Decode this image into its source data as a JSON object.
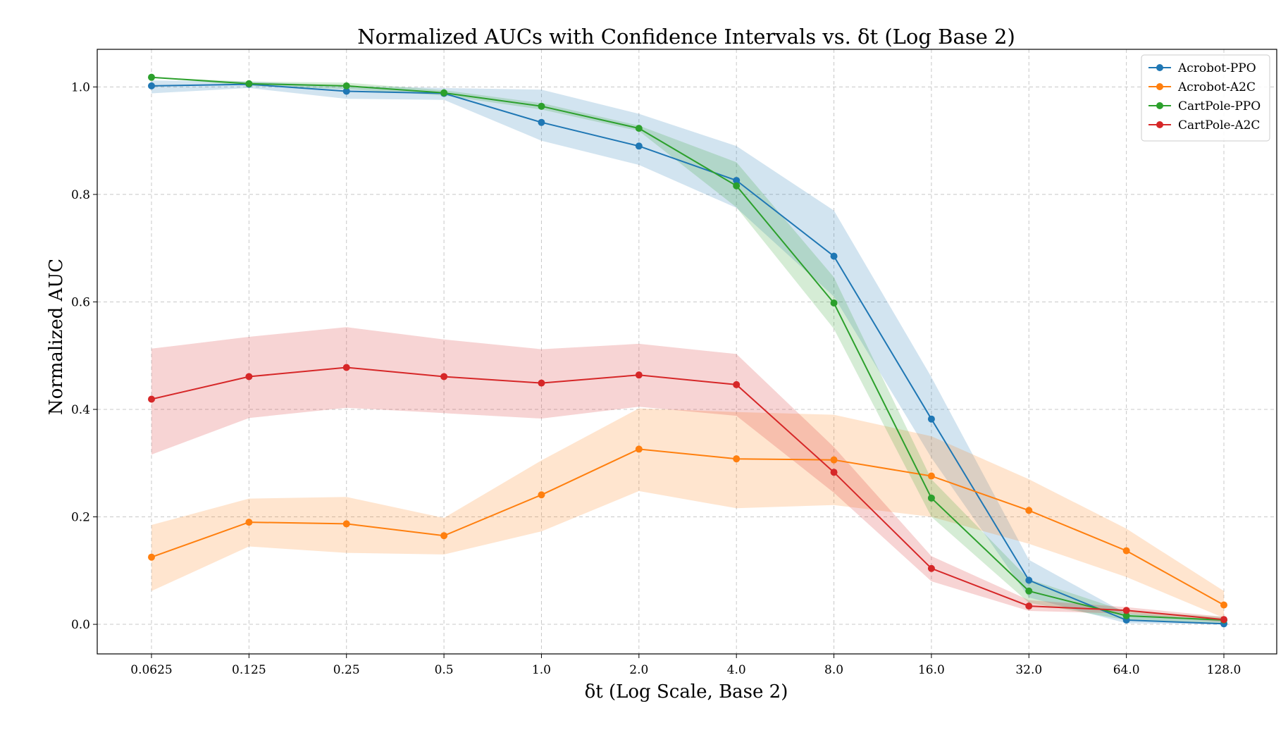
{
  "chart_data": {
    "type": "line",
    "title": "Normalized AUCs with Confidence Intervals vs. δt (Log Base 2)",
    "xlabel": "δt (Log Scale, Base 2)",
    "ylabel": "Normalized AUC",
    "x_scale": "log2",
    "x": [
      0.0625,
      0.125,
      0.25,
      0.5,
      1.0,
      2.0,
      4.0,
      8.0,
      16.0,
      32.0,
      64.0,
      128.0
    ],
    "x_tick_labels": [
      "0.0625",
      "0.125",
      "0.25",
      "0.5",
      "1.0",
      "2.0",
      "4.0",
      "8.0",
      "16.0",
      "32.0",
      "64.0",
      "128.0"
    ],
    "ylim": [
      -0.055,
      1.07
    ],
    "y_ticks": [
      0.0,
      0.2,
      0.4,
      0.6,
      0.8,
      1.0
    ],
    "y_tick_labels": [
      "0.0",
      "0.2",
      "0.4",
      "0.6",
      "0.8",
      "1.0"
    ],
    "grid": true,
    "legend_position": "top-right",
    "series": [
      {
        "name": "Acrobot-PPO",
        "color": "#1f77b4",
        "values": [
          1.002,
          1.005,
          0.992,
          0.988,
          0.934,
          0.89,
          0.826,
          0.685,
          0.382,
          0.082,
          0.008,
          0.001
        ],
        "ci_lower": [
          0.988,
          0.998,
          0.978,
          0.976,
          0.9,
          0.855,
          0.775,
          0.61,
          0.31,
          0.05,
          0.002,
          0.0
        ],
        "ci_upper": [
          1.012,
          1.01,
          1.002,
          0.998,
          0.995,
          0.95,
          0.89,
          0.77,
          0.46,
          0.12,
          0.02,
          0.008
        ]
      },
      {
        "name": "Acrobot-A2C",
        "color": "#ff7f0e",
        "values": [
          0.125,
          0.19,
          0.187,
          0.165,
          0.241,
          0.326,
          0.308,
          0.306,
          0.276,
          0.212,
          0.137,
          0.036
        ],
        "ci_lower": [
          0.062,
          0.145,
          0.133,
          0.13,
          0.173,
          0.248,
          0.216,
          0.222,
          0.2,
          0.15,
          0.088,
          0.012
        ],
        "ci_upper": [
          0.185,
          0.234,
          0.237,
          0.198,
          0.305,
          0.402,
          0.395,
          0.39,
          0.35,
          0.27,
          0.178,
          0.062
        ]
      },
      {
        "name": "CartPole-PPO",
        "color": "#2ca02c",
        "values": [
          1.018,
          1.006,
          1.002,
          0.989,
          0.964,
          0.923,
          0.816,
          0.598,
          0.235,
          0.062,
          0.016,
          0.008
        ],
        "ci_lower": [
          1.018,
          1.002,
          0.996,
          0.984,
          0.958,
          0.918,
          0.776,
          0.55,
          0.2,
          0.04,
          0.008,
          0.002
        ],
        "ci_upper": [
          1.018,
          1.01,
          1.008,
          0.994,
          0.97,
          0.928,
          0.86,
          0.646,
          0.27,
          0.084,
          0.024,
          0.014
        ]
      },
      {
        "name": "CartPole-A2C",
        "color": "#d62728",
        "values": [
          0.419,
          0.461,
          0.478,
          0.461,
          0.449,
          0.464,
          0.446,
          0.283,
          0.104,
          0.034,
          0.026,
          0.009
        ],
        "ci_lower": [
          0.316,
          0.384,
          0.403,
          0.393,
          0.383,
          0.405,
          0.388,
          0.245,
          0.08,
          0.025,
          0.02,
          0.004
        ],
        "ci_upper": [
          0.513,
          0.535,
          0.553,
          0.53,
          0.512,
          0.522,
          0.503,
          0.33,
          0.127,
          0.045,
          0.032,
          0.014
        ]
      }
    ]
  }
}
